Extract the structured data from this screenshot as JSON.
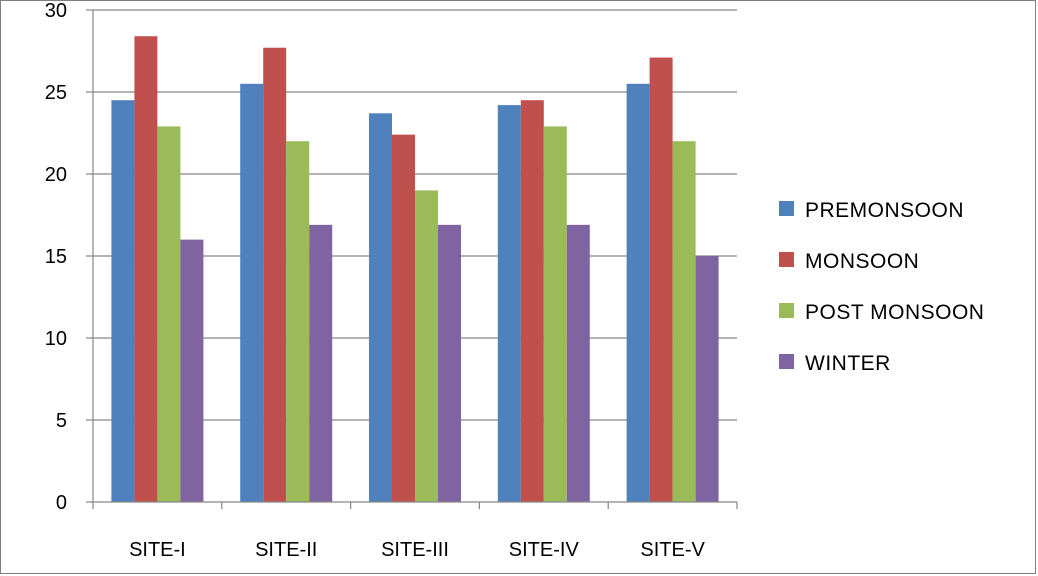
{
  "chart_data": {
    "type": "bar",
    "categories": [
      "SITE-I",
      "SITE-II",
      "SITE-III",
      "SITE-IV",
      "SITE-V"
    ],
    "series": [
      {
        "name": "PREMONSOON",
        "color": "#4F81BD",
        "values": [
          24.5,
          25.5,
          23.7,
          24.2,
          25.5
        ]
      },
      {
        "name": "MONSOON",
        "color": "#C0504D",
        "values": [
          28.4,
          27.7,
          22.4,
          24.5,
          27.1
        ]
      },
      {
        "name": "POST MONSOON",
        "color": "#9BBB59",
        "values": [
          22.9,
          22.0,
          19.0,
          22.9,
          22.0
        ]
      },
      {
        "name": "WINTER",
        "color": "#8064A2",
        "values": [
          16.0,
          16.9,
          16.9,
          16.9,
          15.0
        ]
      }
    ],
    "yticks": [
      0,
      5,
      10,
      15,
      20,
      25,
      30
    ],
    "ylim": [
      0,
      30
    ],
    "grid": true,
    "legend_position": "right",
    "title": "",
    "xlabel": "",
    "ylabel": ""
  }
}
